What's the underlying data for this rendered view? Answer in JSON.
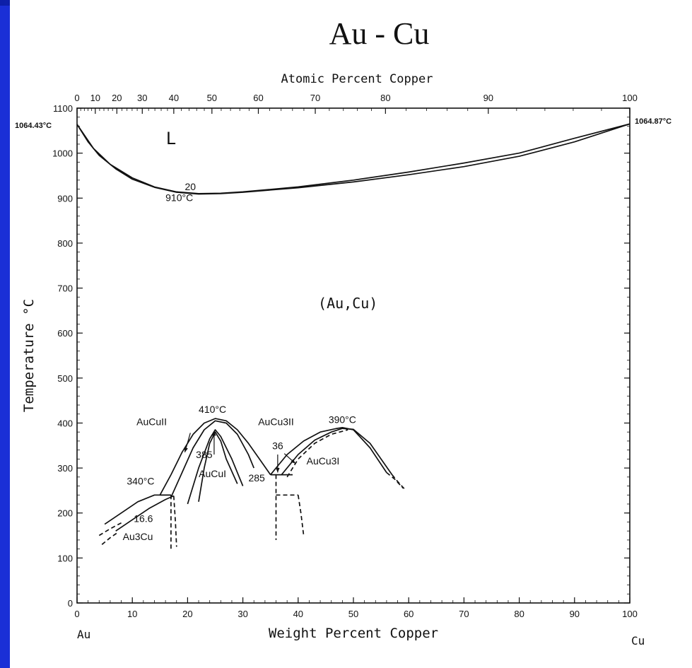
{
  "chart_data": {
    "type": "line",
    "title": "Au - Cu",
    "top_xlabel": "Atomic Percent Copper",
    "xlabel": "Weight Percent Copper",
    "ylabel": "Temperature °C",
    "xlim": [
      0,
      100
    ],
    "ylim": [
      0,
      1100
    ],
    "x_ticks_weight": [
      0,
      10,
      20,
      30,
      40,
      50,
      60,
      70,
      80,
      90,
      100
    ],
    "y_ticks": [
      0,
      100,
      200,
      300,
      400,
      500,
      600,
      700,
      800,
      900,
      1000,
      1100
    ],
    "x_ticks_atomic": [
      0,
      10,
      20,
      30,
      40,
      50,
      60,
      70,
      80,
      90,
      100
    ],
    "x_ticks_atomic_weight_pos": [
      0,
      3.3,
      7.2,
      11.8,
      17.5,
      24.4,
      32.8,
      43.1,
      55.8,
      74.4,
      100
    ],
    "left_end_label": "Au",
    "right_end_label": "Cu",
    "left_melting_label": "1064.43°C",
    "right_melting_label": "1064.87°C",
    "series": [
      {
        "style": "solid",
        "x": [
          0,
          3,
          6,
          10,
          14,
          18,
          22,
          26,
          30,
          40,
          50,
          60,
          70,
          80,
          90,
          100
        ],
        "y": [
          1064,
          1010,
          975,
          945,
          925,
          914,
          910,
          911,
          914,
          925,
          940,
          958,
          978,
          1000,
          1033,
          1065
        ]
      },
      {
        "style": "solid",
        "x": [
          0,
          2,
          4,
          7,
          10,
          14,
          18,
          22,
          26,
          30,
          40,
          50,
          60,
          70,
          80,
          90,
          100
        ],
        "y": [
          1064,
          1025,
          995,
          965,
          942,
          924,
          913,
          909,
          910,
          913,
          923,
          936,
          952,
          970,
          993,
          1025,
          1065
        ]
      },
      {
        "style": "solid",
        "x": [
          15,
          17,
          19,
          21,
          23,
          25,
          27,
          29,
          31,
          33,
          35
        ],
        "y": [
          240,
          285,
          335,
          375,
          400,
          410,
          405,
          385,
          355,
          320,
          285
        ]
      },
      {
        "style": "solid",
        "x": [
          17,
          19,
          21,
          23,
          25,
          27,
          29,
          31,
          32
        ],
        "y": [
          235,
          290,
          345,
          385,
          405,
          400,
          375,
          330,
          300
        ]
      },
      {
        "style": "solid",
        "x": [
          20,
          22,
          24,
          25,
          26,
          28,
          30
        ],
        "y": [
          220,
          300,
          365,
          385,
          370,
          320,
          260
        ]
      },
      {
        "style": "solid",
        "x": [
          22,
          23,
          24,
          25,
          26,
          27,
          29
        ],
        "y": [
          225,
          300,
          355,
          380,
          360,
          320,
          265
        ]
      },
      {
        "style": "solid",
        "x": [
          35,
          38,
          41,
          44,
          47,
          48,
          50,
          53,
          56
        ],
        "y": [
          285,
          330,
          360,
          380,
          388,
          390,
          385,
          345,
          290
        ]
      },
      {
        "style": "solid",
        "x": [
          37,
          40,
          43,
          46,
          48,
          50,
          53,
          55,
          57
        ],
        "y": [
          285,
          330,
          362,
          380,
          388,
          386,
          355,
          320,
          285
        ]
      },
      {
        "style": "dashed",
        "x": [
          38,
          40,
          43,
          46,
          49
        ],
        "y": [
          280,
          320,
          355,
          375,
          385
        ]
      },
      {
        "style": "dashed",
        "x": [
          56,
          57.5,
          59
        ],
        "y": [
          290,
          275,
          255
        ]
      },
      {
        "style": "dashed",
        "x": [
          57,
          58,
          59.5
        ],
        "y": [
          285,
          270,
          250
        ]
      },
      {
        "style": "solid",
        "x": [
          35,
          36,
          37,
          38,
          39
        ],
        "y": [
          285,
          285,
          285,
          285,
          285
        ]
      },
      {
        "style": "dashed",
        "x": [
          36,
          36,
          36
        ],
        "y": [
          285,
          240,
          140
        ]
      },
      {
        "style": "dashed",
        "x": [
          36,
          38,
          40
        ],
        "y": [
          240,
          240,
          240
        ]
      },
      {
        "style": "dashed",
        "x": [
          40,
          40.5,
          41
        ],
        "y": [
          240,
          200,
          150
        ]
      },
      {
        "style": "solid",
        "x": [
          5,
          8,
          11,
          14,
          17
        ],
        "y": [
          175,
          200,
          225,
          240,
          240
        ]
      },
      {
        "style": "dashed",
        "x": [
          4,
          6,
          8
        ],
        "y": [
          150,
          165,
          178
        ]
      },
      {
        "style": "solid",
        "x": [
          7,
          10,
          13,
          16,
          17.5
        ],
        "y": [
          160,
          185,
          210,
          230,
          238
        ]
      },
      {
        "style": "dashed",
        "x": [
          4.5,
          6,
          7.5
        ],
        "y": [
          130,
          145,
          158
        ]
      },
      {
        "style": "dashed",
        "x": [
          17,
          17,
          17
        ],
        "y": [
          240,
          180,
          115
        ]
      },
      {
        "style": "dashed",
        "x": [
          17.5,
          17.8,
          18
        ],
        "y": [
          238,
          180,
          125
        ]
      },
      {
        "style": "solid",
        "x": [
          15,
          16,
          17
        ],
        "y": [
          240,
          240,
          240
        ]
      }
    ],
    "annotations": [
      {
        "text": "L",
        "x": 17,
        "y": 1020
      },
      {
        "text": "20",
        "x": 20.5,
        "y": 918
      },
      {
        "text": "910°C",
        "x": 18.5,
        "y": 893
      },
      {
        "text": "(Au,Cu)",
        "x": 49,
        "y": 655
      },
      {
        "text": "AuCuII",
        "x": 13.5,
        "y": 395
      },
      {
        "text": "410°C",
        "x": 24.5,
        "y": 423
      },
      {
        "text": "AuCu3II",
        "x": 36,
        "y": 395
      },
      {
        "text": "390°C",
        "x": 48,
        "y": 400
      },
      {
        "text": "36",
        "x": 36.3,
        "y": 342
      },
      {
        "text": "385",
        "x": 23,
        "y": 322
      },
      {
        "text": "AuCu3I",
        "x": 44.5,
        "y": 308
      },
      {
        "text": "285",
        "x": 32.5,
        "y": 270
      },
      {
        "text": "AuCuI",
        "x": 24.5,
        "y": 280
      },
      {
        "text": "340°C",
        "x": 11.5,
        "y": 263
      },
      {
        "text": "16.6",
        "x": 12,
        "y": 180
      },
      {
        "text": "Au3Cu",
        "x": 11,
        "y": 140
      }
    ]
  }
}
